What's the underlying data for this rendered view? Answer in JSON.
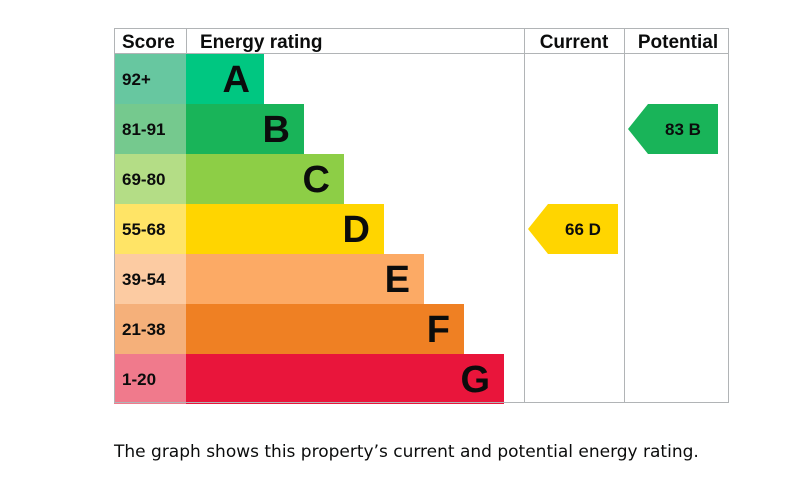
{
  "chart_data": {
    "type": "bar",
    "headers": {
      "score": "Score",
      "rating": "Energy rating",
      "current": "Current",
      "potential": "Potential"
    },
    "bands": [
      {
        "score": "92+",
        "letter": "A",
        "rank": 1,
        "color": "#00c781",
        "score_color": "#67c7a0"
      },
      {
        "score": "81-91",
        "letter": "B",
        "rank": 2,
        "color": "#19b459",
        "score_color": "#75c98e"
      },
      {
        "score": "69-80",
        "letter": "C",
        "rank": 3,
        "color": "#8dce46",
        "score_color": "#b4dd86"
      },
      {
        "score": "55-68",
        "letter": "D",
        "rank": 4,
        "color": "#ffd500",
        "score_color": "#ffe466"
      },
      {
        "score": "39-54",
        "letter": "E",
        "rank": 5,
        "color": "#fcaa65",
        "score_color": "#fccba2"
      },
      {
        "score": "21-38",
        "letter": "F",
        "rank": 6,
        "color": "#ef8023",
        "score_color": "#f5b07a"
      },
      {
        "score": "1-20",
        "letter": "G",
        "rank": 7,
        "color": "#e9153b",
        "score_color": "#f07a8c"
      }
    ],
    "current": {
      "value": 66,
      "band": "D",
      "label": "66 D"
    },
    "potential": {
      "value": 83,
      "band": "B",
      "label": "83 B"
    }
  },
  "caption": "The graph shows this property’s current and potential energy rating."
}
